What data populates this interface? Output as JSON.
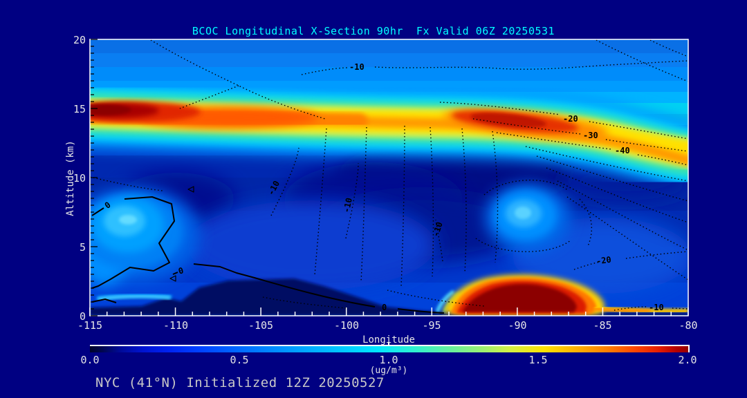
{
  "title": "BCOC Longitudinal X-Section 90hr  Fx Valid 06Z 20250531",
  "footer": "NYC (41°N) Initialized 12Z 20250527",
  "axes": {
    "x_label": "Longitude",
    "y_label": "Altitude (km)",
    "x_ticks": [
      "-115",
      "-110",
      "-105",
      "-100",
      "-95",
      "-90",
      "-85",
      "-80"
    ],
    "y_ticks": [
      "20",
      "15",
      "10",
      "5",
      "0"
    ]
  },
  "colorbar": {
    "ticks": [
      "0.0",
      "0.5",
      "1.0",
      "1.5",
      "2.0"
    ],
    "units": "(ug/m³)"
  },
  "contour_overlay_labels": [
    "-10",
    "-20",
    "-30",
    "-40",
    "-10",
    "-10",
    "-10",
    "-20",
    "-10",
    "0",
    "0",
    "0"
  ],
  "colors": {
    "background": "#000082",
    "title_text": "#00ffff",
    "axis_text": "#e6e6e6",
    "footer_text": "#c8c8c8",
    "frame": "#ffffff",
    "contour_lines": "#000000",
    "palette_low": "#000428",
    "palette_mid": "#00e6ff",
    "palette_high": "#960000"
  },
  "chart_data": {
    "type": "heatmap",
    "subtype": "filled-contour vertical cross-section with temperature contour overlay",
    "title": "BCOC Longitudinal X-Section 90hr  Fx Valid 06Z 20250531",
    "xlabel": "Longitude",
    "ylabel": "Altitude (km)",
    "value_label": "(ug/m³)",
    "xlim": [
      -115,
      -80
    ],
    "x_tick_step_major": 5,
    "x_tick_step_minor": 1,
    "ylim": [
      0,
      20
    ],
    "y_tick_step_major": 5,
    "y_tick_step_minor": 0.5,
    "value_range": [
      0.0,
      2.0
    ],
    "colorbar_ticks": [
      0.0,
      0.5,
      1.0,
      1.5,
      2.0
    ],
    "features": [
      {
        "name": "elevated-plume-layer",
        "description": "High BCOC layer near 14-16 km altitude spanning the whole section",
        "alt_km": [
          13.5,
          16
        ],
        "lon": [
          -115,
          -80
        ],
        "value_ugm3": "1.2-2.0+"
      },
      {
        "name": "west-upper-maximum",
        "lon": [
          -115,
          -107
        ],
        "alt_km": 15.0,
        "value_ugm3": ">2.0"
      },
      {
        "name": "east-upper-maximum",
        "lon": [
          -93,
          -87
        ],
        "alt_km": 14.8,
        "value_ugm3": "1.8-2.0"
      },
      {
        "name": "descending-band-east",
        "description": "plume layer slopes down to ~11.5 km at -80",
        "lon": [
          -84,
          -80
        ],
        "alt_km": [
          13,
          11.5
        ]
      },
      {
        "name": "boundary-layer-plume",
        "description": "surface smoke maximum",
        "lon": [
          -91.5,
          -84.5
        ],
        "alt_km": [
          0,
          2.7
        ],
        "value_ugm3": ">2.0"
      },
      {
        "name": "lower-west-enhancement",
        "description": "broad weak plume enclosed by solid 0-contour",
        "lon": [
          -115,
          -109
        ],
        "alt_km": [
          2,
          7.5
        ],
        "value_ugm3": "~0.3-0.5"
      },
      {
        "name": "mid-level-enhancement-east",
        "lon": [
          -90.5,
          -88.5
        ],
        "alt_km": [
          6,
          8.5
        ],
        "value_ugm3": "~0.4"
      },
      {
        "name": "mid-level-minimum",
        "lon": [
          -99,
          -92
        ],
        "alt_km": [
          8,
          13
        ],
        "value_ugm3": "<0.1"
      },
      {
        "name": "terrain-profile",
        "description": "dark masked terrain along bottom, highest ~2.5 km between -108 and -98"
      }
    ],
    "overlay_contours": {
      "style": "black dotted isolines, solid line for 0",
      "labeled_values": [
        0,
        -10,
        -20,
        -30,
        -40
      ],
      "note": "temperature isotherms sloping downward toward the southeast corner"
    },
    "legend_position": "horizontal colorbar below plot"
  }
}
